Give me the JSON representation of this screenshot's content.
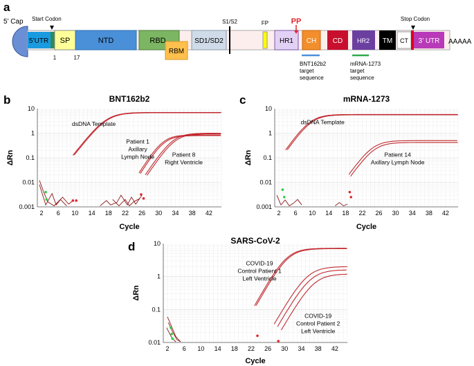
{
  "panel_a": {
    "letter": "a",
    "cap_label": "5’ Cap",
    "start_codon_label": "Start Codon",
    "stop_codon_label": "Stop Codon",
    "s1s2_label": "S1/S2",
    "fp_label": "FP",
    "pp_label": "PP",
    "polya_label": "AAAAA",
    "positions": [
      "1",
      "17"
    ],
    "segments": [
      "5’UTR",
      "SP",
      "NTD",
      "RBD",
      "RBM",
      "SD1/SD2",
      "HR1",
      "CH",
      "CD",
      "HR2",
      "TM",
      "CT",
      "3’ UTR"
    ],
    "bnt_target": [
      "BNT162b2",
      "target",
      "sequence"
    ],
    "mrna_target": [
      "mRNA-1273",
      "target",
      "sequence"
    ],
    "colors": {
      "bnt_target": "#4a90d9",
      "mrna_target": "#2eaa4a",
      "pp": "#e0262b"
    }
  },
  "panel_letters": {
    "b": "b",
    "c": "c",
    "d": "d"
  },
  "chart_data": [
    {
      "id": "b",
      "type": "line",
      "title": "BNT162b2",
      "xlabel": "Cycle",
      "ylabel": "ΔRn",
      "xlim": [
        1,
        45
      ],
      "ylim": [
        0.001,
        10
      ],
      "yscale": "log",
      "xticks": [
        2,
        6,
        10,
        14,
        18,
        22,
        26,
        30,
        34,
        38,
        42
      ],
      "yticks": [
        {
          "v": 10,
          "l": "10"
        },
        {
          "v": 1,
          "l": "1"
        },
        {
          "v": 0.1,
          "l": "0.1"
        },
        {
          "v": 0.01,
          "l": "0.01"
        },
        {
          "v": 0.001,
          "l": "0.001"
        }
      ],
      "annotations": [
        {
          "lines": [
            "dsDNA Template"
          ],
          "x": 14.5,
          "y": 2.0
        },
        {
          "lines": [
            "Patient 1",
            "Axillary",
            "Lymph Node"
          ],
          "x": 25,
          "y": 0.38
        },
        {
          "lines": [
            "Patient 8",
            "Right Ventricle"
          ],
          "x": 36,
          "y": 0.11
        }
      ],
      "series": [
        {
          "name": "dsDNA Template",
          "max": 7.0,
          "mid": 17.5,
          "k": 0.5,
          "xs": 9.5
        },
        {
          "name": "dsDNA Template",
          "max": 6.8,
          "mid": 17.7,
          "k": 0.5,
          "xs": 9.8
        },
        {
          "name": "Patient 1 Axillary Lymph Node",
          "max": 0.85,
          "mid": 31.0,
          "k": 0.62,
          "xs": 25.3
        },
        {
          "name": "Patient 1 Axillary Lymph Node",
          "max": 0.8,
          "mid": 31.3,
          "k": 0.62,
          "xs": 25.6
        },
        {
          "name": "Patient 8 Right Ventricle",
          "max": 1.0,
          "mid": 33.5,
          "k": 0.58,
          "xs": 26.8
        },
        {
          "name": "Patient 8 Right Ventricle",
          "max": 0.95,
          "mid": 33.9,
          "k": 0.58,
          "xs": 27.2
        }
      ],
      "noise": [
        {
          "color": "#8b1a1a",
          "points": [
            [
              1.5,
              0.008
            ],
            [
              3,
              0.0012
            ],
            [
              4.5,
              0.0035
            ],
            [
              5.5,
              0.0012
            ],
            [
              7,
              0.0025
            ],
            [
              8.5,
              0.0013
            ],
            [
              9.5,
              0.0018
            ]
          ]
        },
        {
          "color": "#8b1a1a",
          "points": [
            [
              1.5,
              0.012
            ],
            [
              2.5,
              0.004
            ],
            [
              3.5,
              0.0016
            ],
            [
              5,
              0.0011
            ],
            [
              6.5,
              0.002
            ],
            [
              8,
              0.0011
            ]
          ]
        },
        {
          "color": "#8b1a1a",
          "points": [
            [
              16,
              0.0011
            ],
            [
              17.5,
              0.0018
            ],
            [
              18.5,
              0.0012
            ],
            [
              20,
              0.0015
            ],
            [
              21,
              0.003
            ],
            [
              22.5,
              0.0012
            ],
            [
              23.5,
              0.0025
            ],
            [
              24.5,
              0.0013
            ],
            [
              26,
              0.003
            ]
          ]
        },
        {
          "color": "#8b1a1a",
          "points": [
            [
              19,
              0.002
            ],
            [
              20.5,
              0.0011
            ],
            [
              22,
              0.002
            ],
            [
              23,
              0.0011
            ],
            [
              24,
              0.0016
            ],
            [
              25.5,
              0.0022
            ]
          ]
        }
      ],
      "markers": [
        {
          "x": 3,
          "y": 0.004,
          "c": "#2ecc40"
        },
        {
          "x": 3.2,
          "y": 0.002,
          "c": "#2ecc40"
        },
        {
          "x": 9.5,
          "y": 0.0018,
          "c": "#e0262b"
        },
        {
          "x": 10.3,
          "y": 0.0018,
          "c": "#e0262b"
        },
        {
          "x": 25.8,
          "y": 0.0032,
          "c": "#e0262b"
        },
        {
          "x": 26.4,
          "y": 0.0022,
          "c": "#e0262b"
        }
      ]
    },
    {
      "id": "c",
      "type": "line",
      "title": "mRNA-1273",
      "xlabel": "Cycle",
      "ylabel": "ΔRn",
      "xlim": [
        1,
        45
      ],
      "ylim": [
        0.001,
        10
      ],
      "yscale": "log",
      "xticks": [
        2,
        6,
        10,
        14,
        18,
        22,
        26,
        30,
        34,
        38,
        42
      ],
      "yticks": [
        {
          "v": 10,
          "l": "10"
        },
        {
          "v": 1,
          "l": "1"
        },
        {
          "v": 0.1,
          "l": "0.1"
        },
        {
          "v": 0.01,
          "l": "0.01"
        },
        {
          "v": 0.001,
          "l": "0.001"
        }
      ],
      "annotations": [
        {
          "lines": [
            "dsDNA Template"
          ],
          "x": 12.5,
          "y": 2.3
        },
        {
          "lines": [
            "Patient 14",
            "Axillary Lymph Node"
          ],
          "x": 30.5,
          "y": 0.11
        }
      ],
      "series": [
        {
          "name": "dsDNA Template",
          "max": 5.8,
          "mid": 9.6,
          "k": 0.55,
          "xs": 3.6
        },
        {
          "name": "dsDNA Template",
          "max": 5.6,
          "mid": 9.9,
          "k": 0.55,
          "xs": 4.0
        },
        {
          "name": "Patient 14 Axillary Lymph Node",
          "max": 0.5,
          "mid": 24.5,
          "k": 0.55,
          "xs": 18.8
        },
        {
          "name": "Patient 14 Axillary Lymph Node",
          "max": 0.42,
          "mid": 24.9,
          "k": 0.55,
          "xs": 19.2
        }
      ],
      "noise": [
        {
          "color": "#8b1a1a",
          "points": [
            [
              1.5,
              0.003
            ],
            [
              2.5,
              0.0012
            ],
            [
              3.5,
              0.0019
            ],
            [
              4.5,
              0.0011
            ],
            [
              5.5,
              0.0014
            ],
            [
              6.5,
              0.002
            ],
            [
              7.5,
              0.0012
            ]
          ]
        },
        {
          "color": "#8b1a1a",
          "points": [
            [
              15.5,
              0.0011
            ],
            [
              16.5,
              0.0015
            ],
            [
              17.5,
              0.0011
            ],
            [
              18.5,
              0.0013
            ]
          ]
        }
      ],
      "markers": [
        {
          "x": 2.9,
          "y": 0.005,
          "c": "#2ecc40"
        },
        {
          "x": 3.3,
          "y": 0.0025,
          "c": "#2ecc40"
        },
        {
          "x": 19.0,
          "y": 0.004,
          "c": "#e0262b"
        },
        {
          "x": 19.3,
          "y": 0.0025,
          "c": "#e0262b"
        }
      ]
    },
    {
      "id": "d",
      "type": "line",
      "title": "SARS-CoV-2",
      "xlabel": "Cycle",
      "ylabel": "ΔRn",
      "xlim": [
        1,
        45
      ],
      "ylim": [
        0.01,
        10
      ],
      "yscale": "log",
      "xticks": [
        2,
        6,
        10,
        14,
        18,
        22,
        26,
        30,
        34,
        38,
        42
      ],
      "yticks": [
        {
          "v": 10,
          "l": "10"
        },
        {
          "v": 1,
          "l": "1"
        },
        {
          "v": 0.1,
          "l": "0.1"
        },
        {
          "v": 0.01,
          "l": "0.01"
        }
      ],
      "annotations": [
        {
          "lines": [
            "COVID-19",
            "Control Patient 1",
            "Left Ventricle"
          ],
          "x": 24,
          "y": 2.2
        },
        {
          "lines": [
            "COVID-19",
            "Control Patient 2",
            "Left Ventricle"
          ],
          "x": 38,
          "y": 0.055
        }
      ],
      "series": [
        {
          "name": "COVID-19 Control Patient 1 Left Ventricle",
          "max": 7.2,
          "mid": 30.5,
          "k": 0.52,
          "xs": 22.8
        },
        {
          "name": "COVID-19 Control Patient 1 Left Ventricle",
          "max": 7.0,
          "mid": 30.8,
          "k": 0.52,
          "xs": 23.2
        },
        {
          "name": "COVID-19 Control Patient 2 Left Ventricle",
          "max": 2.0,
          "mid": 35.5,
          "k": 0.5,
          "xs": 27.5
        },
        {
          "name": "COVID-19 Control Patient 2 Left Ventricle",
          "max": 1.6,
          "mid": 36.2,
          "k": 0.5,
          "xs": 28.3
        },
        {
          "name": "COVID-19 Control Patient 2 Left Ventricle",
          "max": 1.2,
          "mid": 37.0,
          "k": 0.5,
          "xs": 29.2
        }
      ],
      "noise": [
        {
          "color": "#8b1a1a",
          "points": [
            [
              2,
              0.06
            ],
            [
              3,
              0.03
            ],
            [
              4,
              0.015
            ],
            [
              5,
              0.011
            ]
          ]
        },
        {
          "color": "#8b1a1a",
          "points": [
            [
              2.2,
              0.04
            ],
            [
              3.3,
              0.02
            ],
            [
              4.3,
              0.012
            ],
            [
              5.2,
              0.0105
            ]
          ]
        },
        {
          "color": "#8b1a1a",
          "points": [
            [
              1.8,
              0.028
            ],
            [
              3.0,
              0.014
            ],
            [
              4.0,
              0.0105
            ]
          ]
        }
      ],
      "markers": [
        {
          "x": 2.8,
          "y": 0.028,
          "c": "#2ecc40"
        },
        {
          "x": 3.0,
          "y": 0.018,
          "c": "#2ecc40"
        },
        {
          "x": 3.2,
          "y": 0.013,
          "c": "#2ecc40"
        },
        {
          "x": 23.5,
          "y": 0.016,
          "c": "#e0262b"
        },
        {
          "x": 28.5,
          "y": 0.011,
          "c": "#e0262b"
        }
      ]
    }
  ]
}
